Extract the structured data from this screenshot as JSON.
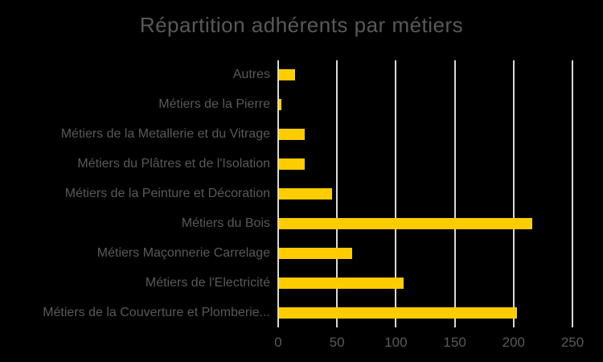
{
  "colors": {
    "background": "#000000",
    "bar": "#FFCC00",
    "text": "#595959",
    "gridline": "#D9D9D9"
  },
  "chart_data": {
    "type": "bar",
    "orientation": "horizontal",
    "title": "Répartition adhérents par métiers",
    "categories": [
      "Autres",
      "Métiers de la Pierre",
      "Métiers de la Metallerie et du Vitrage",
      "Métiers du Plâtres et de l'Isolation",
      "Métiers de la Peinture et Décoration",
      "Métiers du Bois",
      "Métiers Maçonnerie Carrelage",
      "Métiers de l'Electricité",
      "Métiers de la Couverture et Plomberie..."
    ],
    "values": [
      14,
      2,
      22,
      22,
      45,
      215,
      62,
      106,
      202
    ],
    "x_ticks": [
      0,
      50,
      100,
      150,
      200,
      250
    ],
    "xlim": [
      0,
      250
    ],
    "xlabel": "",
    "ylabel": "",
    "grid": true,
    "legend": false
  }
}
